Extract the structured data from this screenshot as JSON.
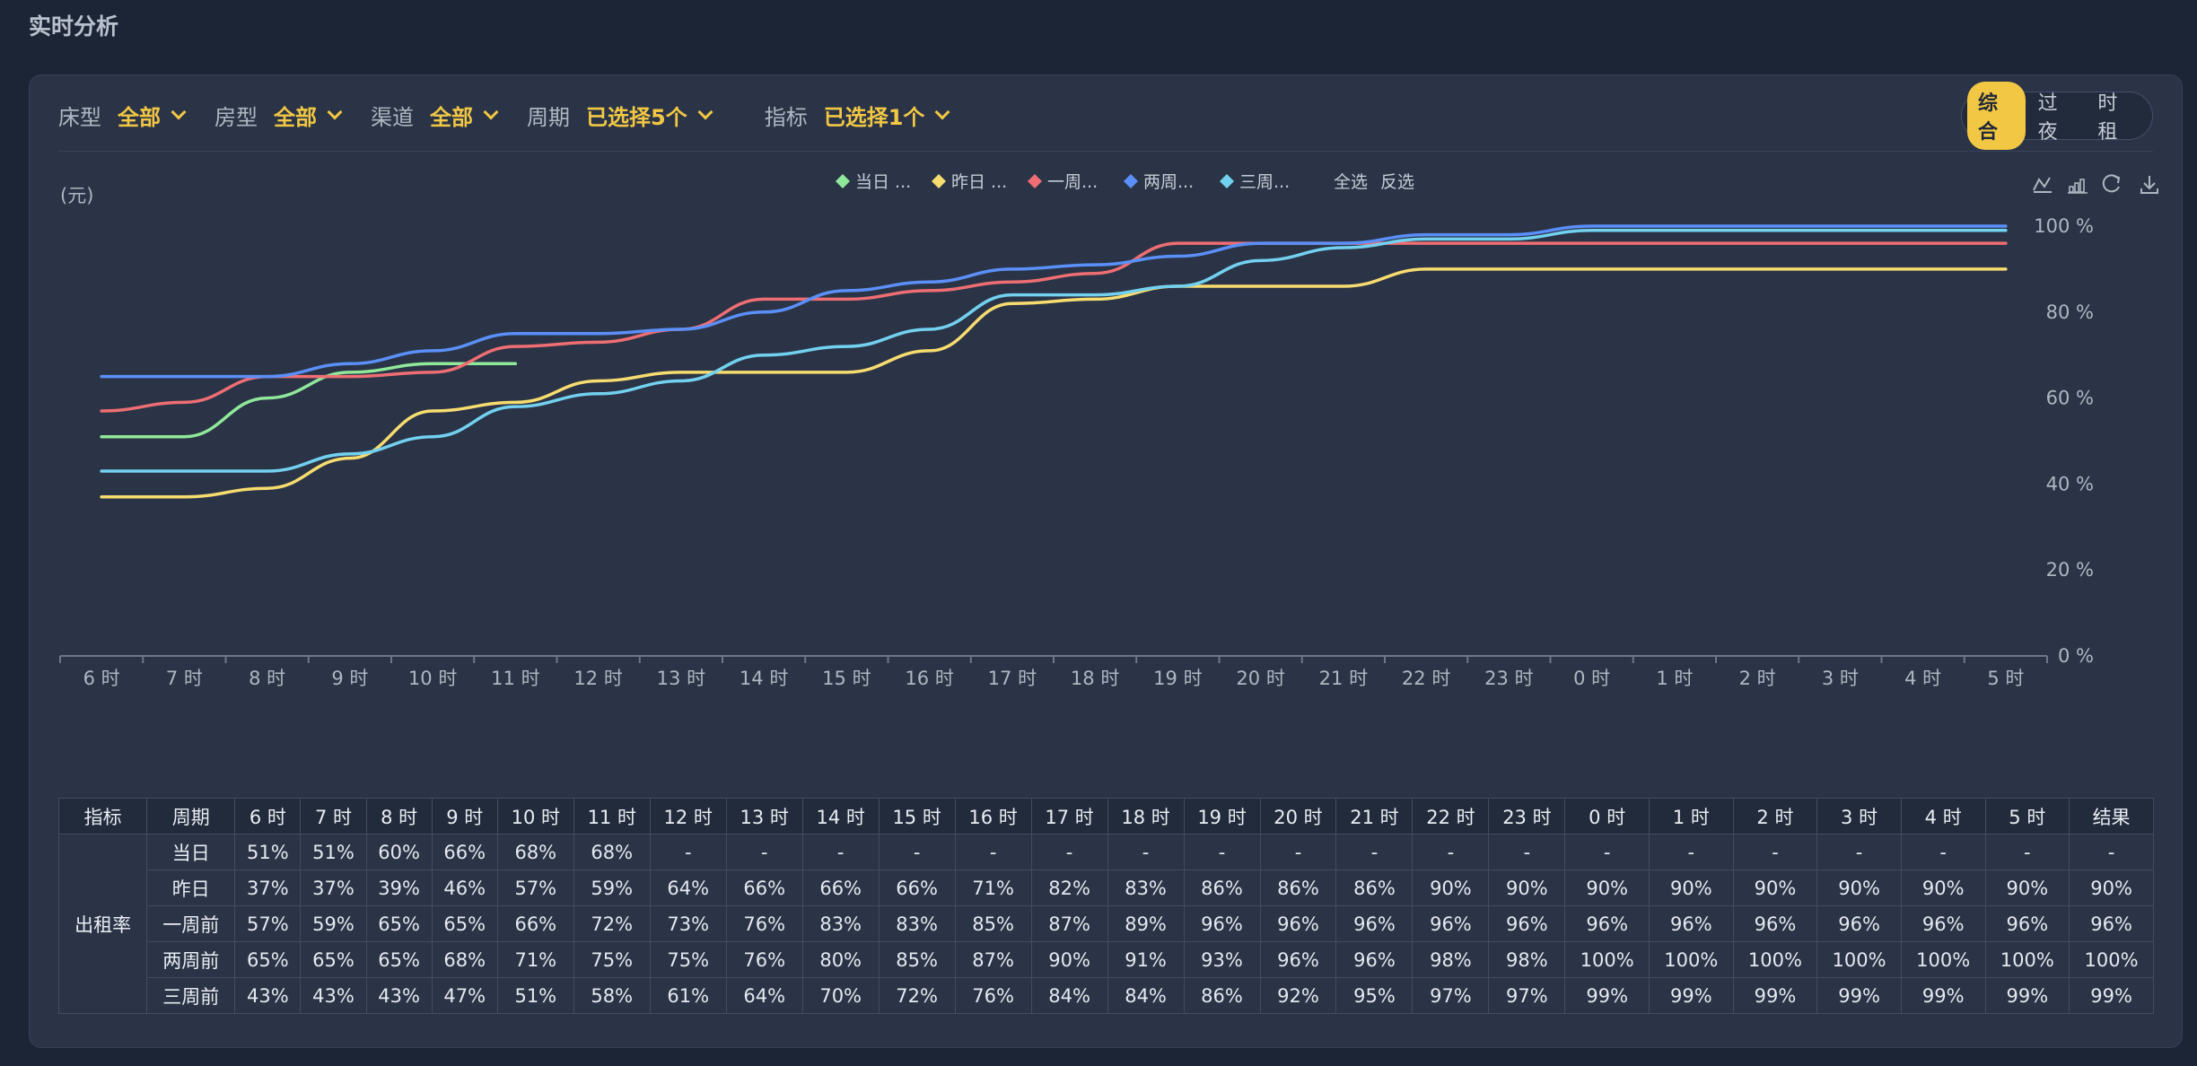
{
  "page_title": "实时分析",
  "filters": [
    {
      "label": "床型",
      "value": "全部"
    },
    {
      "label": "房型",
      "value": "全部"
    },
    {
      "label": "渠道",
      "value": "全部"
    },
    {
      "label": "周期",
      "value": "已选择5个"
    },
    {
      "label": "指标",
      "value": "已选择1个"
    }
  ],
  "mode_tabs": [
    "综合",
    "过夜",
    "时租"
  ],
  "active_mode": "综合",
  "toolbox_icons": [
    "line-chart-icon",
    "bar-chart-icon",
    "refresh-icon",
    "download-icon"
  ],
  "chart_data": {
    "type": "line",
    "ylabel": "(元)",
    "ylim": [
      0,
      100
    ],
    "yticks": [
      "0 %",
      "20 %",
      "40 %",
      "60 %",
      "80 %",
      "100 %"
    ],
    "ytick_values": [
      0,
      20,
      40,
      60,
      80,
      100
    ],
    "grid": false,
    "legend_position": "top-center",
    "legend_select_all": "全选",
    "legend_invert": "反选",
    "categories": [
      "6 时",
      "7 时",
      "8 时",
      "9 时",
      "10 时",
      "11 时",
      "12 时",
      "13 时",
      "14 时",
      "15 时",
      "16 时",
      "17 时",
      "18 时",
      "19 时",
      "20 时",
      "21 时",
      "22 时",
      "23 时",
      "0 时",
      "1 时",
      "2 时",
      "3 时",
      "4 时",
      "5 时"
    ],
    "series": [
      {
        "name": "当日",
        "legend_label": "当日 ...",
        "color": "#90e89a",
        "values": [
          51,
          51,
          60,
          66,
          68,
          68,
          null,
          null,
          null,
          null,
          null,
          null,
          null,
          null,
          null,
          null,
          null,
          null,
          null,
          null,
          null,
          null,
          null,
          null
        ]
      },
      {
        "name": "昨日",
        "legend_label": "昨日 ...",
        "color": "#f7dc6f",
        "values": [
          37,
          37,
          39,
          46,
          57,
          59,
          64,
          66,
          66,
          66,
          71,
          82,
          83,
          86,
          86,
          86,
          90,
          90,
          90,
          90,
          90,
          90,
          90,
          90
        ]
      },
      {
        "name": "一周前",
        "legend_label": "一周...",
        "color": "#ee6e73",
        "values": [
          57,
          59,
          65,
          65,
          66,
          72,
          73,
          76,
          83,
          83,
          85,
          87,
          89,
          96,
          96,
          96,
          96,
          96,
          96,
          96,
          96,
          96,
          96,
          96
        ]
      },
      {
        "name": "两周前",
        "legend_label": "两周...",
        "color": "#5b8ff9",
        "values": [
          65,
          65,
          65,
          68,
          71,
          75,
          75,
          76,
          80,
          85,
          87,
          90,
          91,
          93,
          96,
          96,
          98,
          98,
          100,
          100,
          100,
          100,
          100,
          100
        ]
      },
      {
        "name": "三周前",
        "legend_label": "三周...",
        "color": "#73d1f0",
        "values": [
          43,
          43,
          43,
          47,
          51,
          58,
          61,
          64,
          70,
          72,
          76,
          84,
          84,
          86,
          92,
          95,
          97,
          97,
          99,
          99,
          99,
          99,
          99,
          99
        ]
      }
    ]
  },
  "table": {
    "headers": [
      "指标",
      "周期",
      "6 时",
      "7 时",
      "8 时",
      "9 时",
      "10 时",
      "11 时",
      "12 时",
      "13 时",
      "14 时",
      "15 时",
      "16 时",
      "17 时",
      "18 时",
      "19 时",
      "20 时",
      "21 时",
      "22 时",
      "23 时",
      "0 时",
      "1 时",
      "2 时",
      "3 时",
      "4 时",
      "5 时",
      "结果"
    ],
    "metric": "出租率",
    "rows": [
      {
        "period": "当日",
        "cells": [
          "51%",
          "51%",
          "60%",
          "66%",
          "68%",
          "68%",
          "-",
          "-",
          "-",
          "-",
          "-",
          "-",
          "-",
          "-",
          "-",
          "-",
          "-",
          "-",
          "-",
          "-",
          "-",
          "-",
          "-",
          "-",
          "-"
        ]
      },
      {
        "period": "昨日",
        "cells": [
          "37%",
          "37%",
          "39%",
          "46%",
          "57%",
          "59%",
          "64%",
          "66%",
          "66%",
          "66%",
          "71%",
          "82%",
          "83%",
          "86%",
          "86%",
          "86%",
          "90%",
          "90%",
          "90%",
          "90%",
          "90%",
          "90%",
          "90%",
          "90%",
          "90%"
        ]
      },
      {
        "period": "一周前",
        "cells": [
          "57%",
          "59%",
          "65%",
          "65%",
          "66%",
          "72%",
          "73%",
          "76%",
          "83%",
          "83%",
          "85%",
          "87%",
          "89%",
          "96%",
          "96%",
          "96%",
          "96%",
          "96%",
          "96%",
          "96%",
          "96%",
          "96%",
          "96%",
          "96%",
          "96%"
        ]
      },
      {
        "period": "两周前",
        "cells": [
          "65%",
          "65%",
          "65%",
          "68%",
          "71%",
          "75%",
          "75%",
          "76%",
          "80%",
          "85%",
          "87%",
          "90%",
          "91%",
          "93%",
          "96%",
          "96%",
          "98%",
          "98%",
          "100%",
          "100%",
          "100%",
          "100%",
          "100%",
          "100%",
          "100%"
        ]
      },
      {
        "period": "三周前",
        "cells": [
          "43%",
          "43%",
          "43%",
          "47%",
          "51%",
          "58%",
          "61%",
          "64%",
          "70%",
          "72%",
          "76%",
          "84%",
          "84%",
          "86%",
          "92%",
          "95%",
          "97%",
          "97%",
          "99%",
          "99%",
          "99%",
          "99%",
          "99%",
          "99%",
          "99%"
        ]
      }
    ]
  }
}
